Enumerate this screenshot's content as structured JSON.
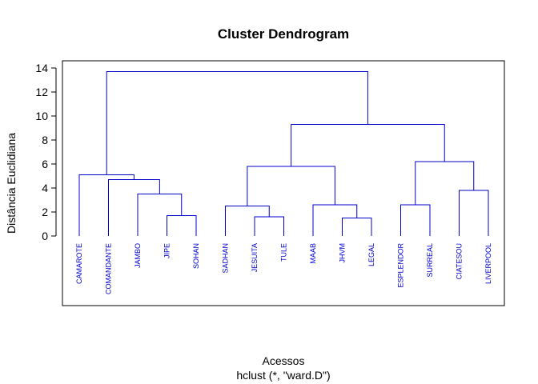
{
  "chart_data": {
    "type": "dendrogram",
    "title": "Cluster Dendrogram",
    "xlabel": "Acessos",
    "sublabel": "hclust (*, \"ward.D\")",
    "ylabel": "Distância Euclidiana",
    "ylim": [
      0,
      14
    ],
    "yticks": [
      0,
      2,
      4,
      6,
      8,
      10,
      12,
      14
    ],
    "color": "#0000cc",
    "leaves": [
      "CAMAROTE",
      "COMANDANTE",
      "JAMBO",
      "JIPE",
      "SOHAN",
      "SADHAN",
      "JESUITA",
      "TULE",
      "MAAB",
      "JHVM",
      "LEGAL",
      "ESPLENDOR",
      "SURREAL",
      "CIATESOU",
      "LIVERPOOL"
    ],
    "merges": [
      {
        "left": "JIPE",
        "right": "SOHAN",
        "height": 1.7
      },
      {
        "left": "JAMBO",
        "right": [
          "JIPE",
          "SOHAN"
        ],
        "height": 3.5
      },
      {
        "left": "COMANDANTE",
        "right": [
          "JAMBO",
          "JIPE",
          "SOHAN"
        ],
        "height": 4.7
      },
      {
        "left": "CAMAROTE",
        "right": [
          "COMANDANTE",
          "JAMBO",
          "JIPE",
          "SOHAN"
        ],
        "height": 5.1
      },
      {
        "left": "JESUITA",
        "right": "TULE",
        "height": 1.6
      },
      {
        "left": "SADHAN",
        "right": [
          "JESUITA",
          "TULE"
        ],
        "height": 2.5
      },
      {
        "left": "JHVM",
        "right": "LEGAL",
        "height": 1.5
      },
      {
        "left": "MAAB",
        "right": [
          "JHVM",
          "LEGAL"
        ],
        "height": 2.6
      },
      {
        "left": [
          "SADHAN",
          "JESUITA",
          "TULE"
        ],
        "right": [
          "MAAB",
          "JHVM",
          "LEGAL"
        ],
        "height": 5.8
      },
      {
        "left": "ESPLENDOR",
        "right": "SURREAL",
        "height": 2.6
      },
      {
        "left": "CIATESOU",
        "right": "LIVERPOOL",
        "height": 3.8
      },
      {
        "left": [
          "ESPLENDOR",
          "SURREAL"
        ],
        "right": [
          "CIATESOU",
          "LIVERPOOL"
        ],
        "height": 6.2
      },
      {
        "left": [
          "SADHAN",
          "JESUITA",
          "TULE",
          "MAAB",
          "JHVM",
          "LEGAL"
        ],
        "right": [
          "ESPLENDOR",
          "SURREAL",
          "CIATESOU",
          "LIVERPOOL"
        ],
        "height": 9.3
      },
      {
        "left": [
          "CAMAROTE",
          "COMANDANTE",
          "JAMBO",
          "JIPE",
          "SOHAN"
        ],
        "right": [
          "SADHAN",
          "JESUITA",
          "TULE",
          "MAAB",
          "JHVM",
          "LEGAL",
          "ESPLENDOR",
          "SURREAL",
          "CIATESOU",
          "LIVERPOOL"
        ],
        "height": 13.7
      }
    ]
  }
}
